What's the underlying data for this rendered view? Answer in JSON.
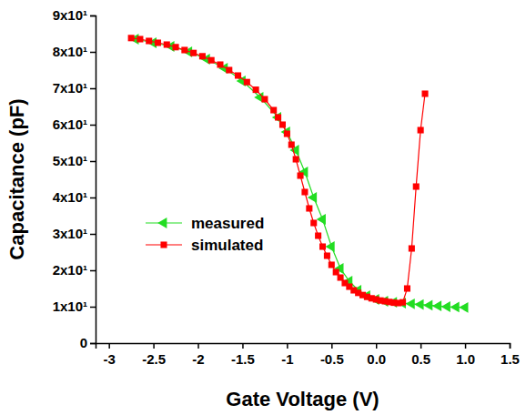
{
  "chart_data": {
    "type": "line",
    "x_label": "Gate Voltage (V)",
    "y_label": "Capacitance (pF)",
    "xlim": [
      -3.15,
      1.5
    ],
    "xticks": [
      -3.0,
      -2.5,
      -2.0,
      -1.5,
      -1.0,
      -0.5,
      {
        "value": 0,
        "label": "0.0"
      },
      0.5,
      {
        "value": 1,
        "label": "1.0"
      },
      1.5
    ],
    "ylim": [
      0,
      90
    ],
    "yticks": [
      0,
      {
        "value": 10,
        "label": "1x10¹"
      },
      {
        "value": 20,
        "label": "2x10¹"
      },
      {
        "value": 30,
        "label": "3x10¹"
      },
      {
        "value": 40,
        "label": "4x10¹"
      },
      {
        "value": 50,
        "label": "5x10¹"
      },
      {
        "value": 60,
        "label": "6x10¹"
      },
      {
        "value": 70,
        "label": "7x10¹"
      },
      {
        "value": 80,
        "label": "8x10¹"
      },
      {
        "value": 90,
        "label": "9x10¹"
      }
    ],
    "grid": false,
    "legend": "left",
    "series": [
      {
        "name": "measured",
        "color": "#22dd22",
        "marker": "triangle-left",
        "line_style": "solid",
        "x": [
          -2.7,
          -2.5,
          -2.3,
          -2.1,
          -1.9,
          -1.7,
          -1.5,
          -1.3,
          -1.1,
          -1.0,
          -0.9,
          -0.8,
          -0.7,
          -0.6,
          -0.5,
          -0.4,
          -0.3,
          -0.2,
          -0.1,
          0.0,
          0.1,
          0.2,
          0.3,
          0.4,
          0.5,
          0.6,
          0.7,
          0.8,
          0.9,
          1.0
        ],
        "values": [
          83.5,
          82.5,
          81.5,
          80,
          78,
          75.5,
          72,
          67.5,
          62,
          58,
          53,
          47,
          40,
          34,
          26.5,
          20.5,
          17,
          14.5,
          13,
          12,
          11.5,
          11.2,
          11,
          10.8,
          10.6,
          10.4,
          10.2,
          10,
          9.9,
          9.8
        ]
      },
      {
        "name": "simulated",
        "color": "#ff0000",
        "marker": "square",
        "line_style": "solid",
        "x": [
          -2.75,
          -2.65,
          -2.55,
          -2.45,
          -2.35,
          -2.25,
          -2.15,
          -2.05,
          -1.95,
          -1.85,
          -1.75,
          -1.65,
          -1.55,
          -1.45,
          -1.35,
          -1.25,
          -1.15,
          -1.1,
          -1.05,
          -1.0,
          -0.95,
          -0.9,
          -0.85,
          -0.8,
          -0.75,
          -0.7,
          -0.65,
          -0.6,
          -0.55,
          -0.5,
          -0.45,
          -0.4,
          -0.35,
          -0.3,
          -0.25,
          -0.2,
          -0.15,
          -0.1,
          -0.05,
          0.0,
          0.05,
          0.1,
          0.15,
          0.2,
          0.25,
          0.3,
          0.35,
          0.4,
          0.45,
          0.5,
          0.55
        ],
        "values": [
          83.8,
          83.5,
          83,
          82.5,
          82,
          81.3,
          80.5,
          79.7,
          78.8,
          77.7,
          76.5,
          75,
          73.5,
          71.7,
          69.6,
          67,
          64,
          62,
          60,
          57.5,
          54.5,
          50.5,
          46,
          41.5,
          37,
          33,
          29.5,
          26.5,
          24,
          21.5,
          19.5,
          18,
          16.5,
          15.5,
          14.5,
          13.8,
          13.2,
          12.7,
          12.3,
          12,
          11.7,
          11.5,
          11.3,
          11.1,
          11,
          11.2,
          15,
          26,
          43,
          58.5,
          68.5
        ]
      }
    ]
  }
}
